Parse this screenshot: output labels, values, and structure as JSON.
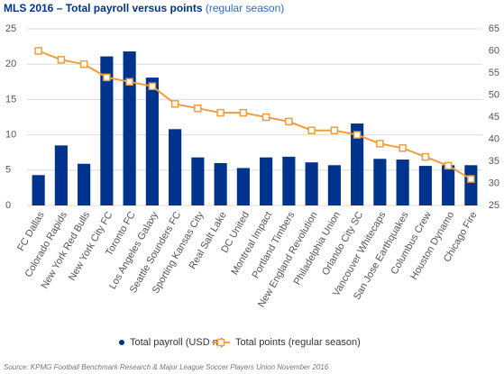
{
  "chart_data": {
    "type": "bar_line",
    "title": "MLS 2016 – Total payroll versus points",
    "subtitle": "(regular season)",
    "source": "Source: KPMG Football Benchmark Research & Major League Soccer Players Union November 2016",
    "categories": [
      "FC Dallas",
      "Colorado Rapids",
      "New York Red Bulls",
      "New York City FC",
      "Toronto FC",
      "Los Angeles Galaxy",
      "Seattle Sounders FC",
      "Sporting Kansas City",
      "Real Salt Lake",
      "DC United",
      "Montreal Impact",
      "Portland Timbers",
      "New England Revolution",
      "Philadelphia Union",
      "Orlando City SC",
      "Vancouver Whitecaps",
      "San Jose Earthquakes",
      "Columbus Crew",
      "Houston Dynamo",
      "Chicago Fire"
    ],
    "series": [
      {
        "name": "Total payroll (USD m)",
        "color": "#00338d",
        "kind": "bar",
        "values": [
          4.3,
          8.5,
          5.9,
          21.1,
          21.8,
          18.1,
          10.8,
          6.8,
          6.0,
          5.3,
          6.8,
          6.9,
          6.1,
          5.7,
          11.6,
          6.6,
          6.5,
          5.6,
          5.7,
          5.7
        ]
      },
      {
        "name": "Total points (regular season)",
        "color": "#f39c3a",
        "kind": "line",
        "axis": "y2",
        "values": [
          60,
          58,
          57,
          54,
          53,
          52,
          48,
          47,
          46,
          46,
          45,
          44,
          42,
          42,
          41,
          39,
          38,
          36,
          34,
          31
        ]
      }
    ],
    "ylim": [
      0,
      25
    ],
    "yticks": [
      0,
      5,
      10,
      15,
      20,
      25
    ],
    "y2lim": [
      25,
      65
    ],
    "y2ticks": [
      25,
      30,
      35,
      40,
      45,
      50,
      55,
      60,
      65
    ],
    "grid": true
  }
}
